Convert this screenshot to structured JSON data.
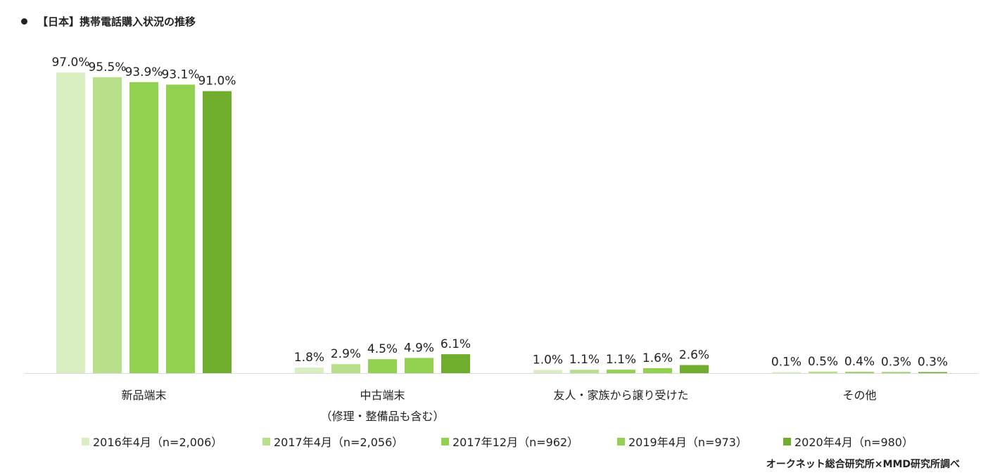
{
  "title": "【日本】携帯電話購入状況の推移",
  "credit": "オークネット総合研究所×MMD研究所調べ",
  "chart_data": {
    "type": "bar",
    "categories": [
      {
        "label": "新品端末",
        "sublabel": ""
      },
      {
        "label": "中古端末",
        "sublabel": "（修理・整備品も含む）"
      },
      {
        "label": "友人・家族から譲り受けた",
        "sublabel": ""
      },
      {
        "label": "その他",
        "sublabel": ""
      }
    ],
    "series": [
      {
        "name": "2016年4月（n=2,006）",
        "color": "#d9efc2",
        "values": [
          97.0,
          1.8,
          1.0,
          0.1
        ],
        "labels": [
          "97.0%",
          "1.8%",
          "1.0%",
          "0.1%"
        ]
      },
      {
        "name": "2017年4月（n=2,056）",
        "color": "#b8df8a",
        "values": [
          95.5,
          2.9,
          1.1,
          0.5
        ],
        "labels": [
          "95.5%",
          "2.9%",
          "1.1%",
          "0.5%"
        ]
      },
      {
        "name": "2017年12月（n=962）",
        "color": "#92d050",
        "values": [
          93.9,
          4.5,
          1.1,
          0.4
        ],
        "labels": [
          "93.9%",
          "4.5%",
          "1.1%",
          "0.4%"
        ]
      },
      {
        "name": "2019年4月（n=973）",
        "color": "#92d050",
        "values": [
          93.1,
          4.9,
          1.6,
          0.3
        ],
        "labels": [
          "93.1%",
          "4.9%",
          "1.6%",
          "0.3%"
        ]
      },
      {
        "name": "2020年4月（n=980）",
        "color": "#70ad2c",
        "values": [
          91.0,
          6.1,
          2.6,
          0.3
        ],
        "labels": [
          "91.0%",
          "6.1%",
          "2.6%",
          "0.3%"
        ]
      }
    ],
    "ylim": [
      0,
      100
    ],
    "legend": "bottom"
  }
}
